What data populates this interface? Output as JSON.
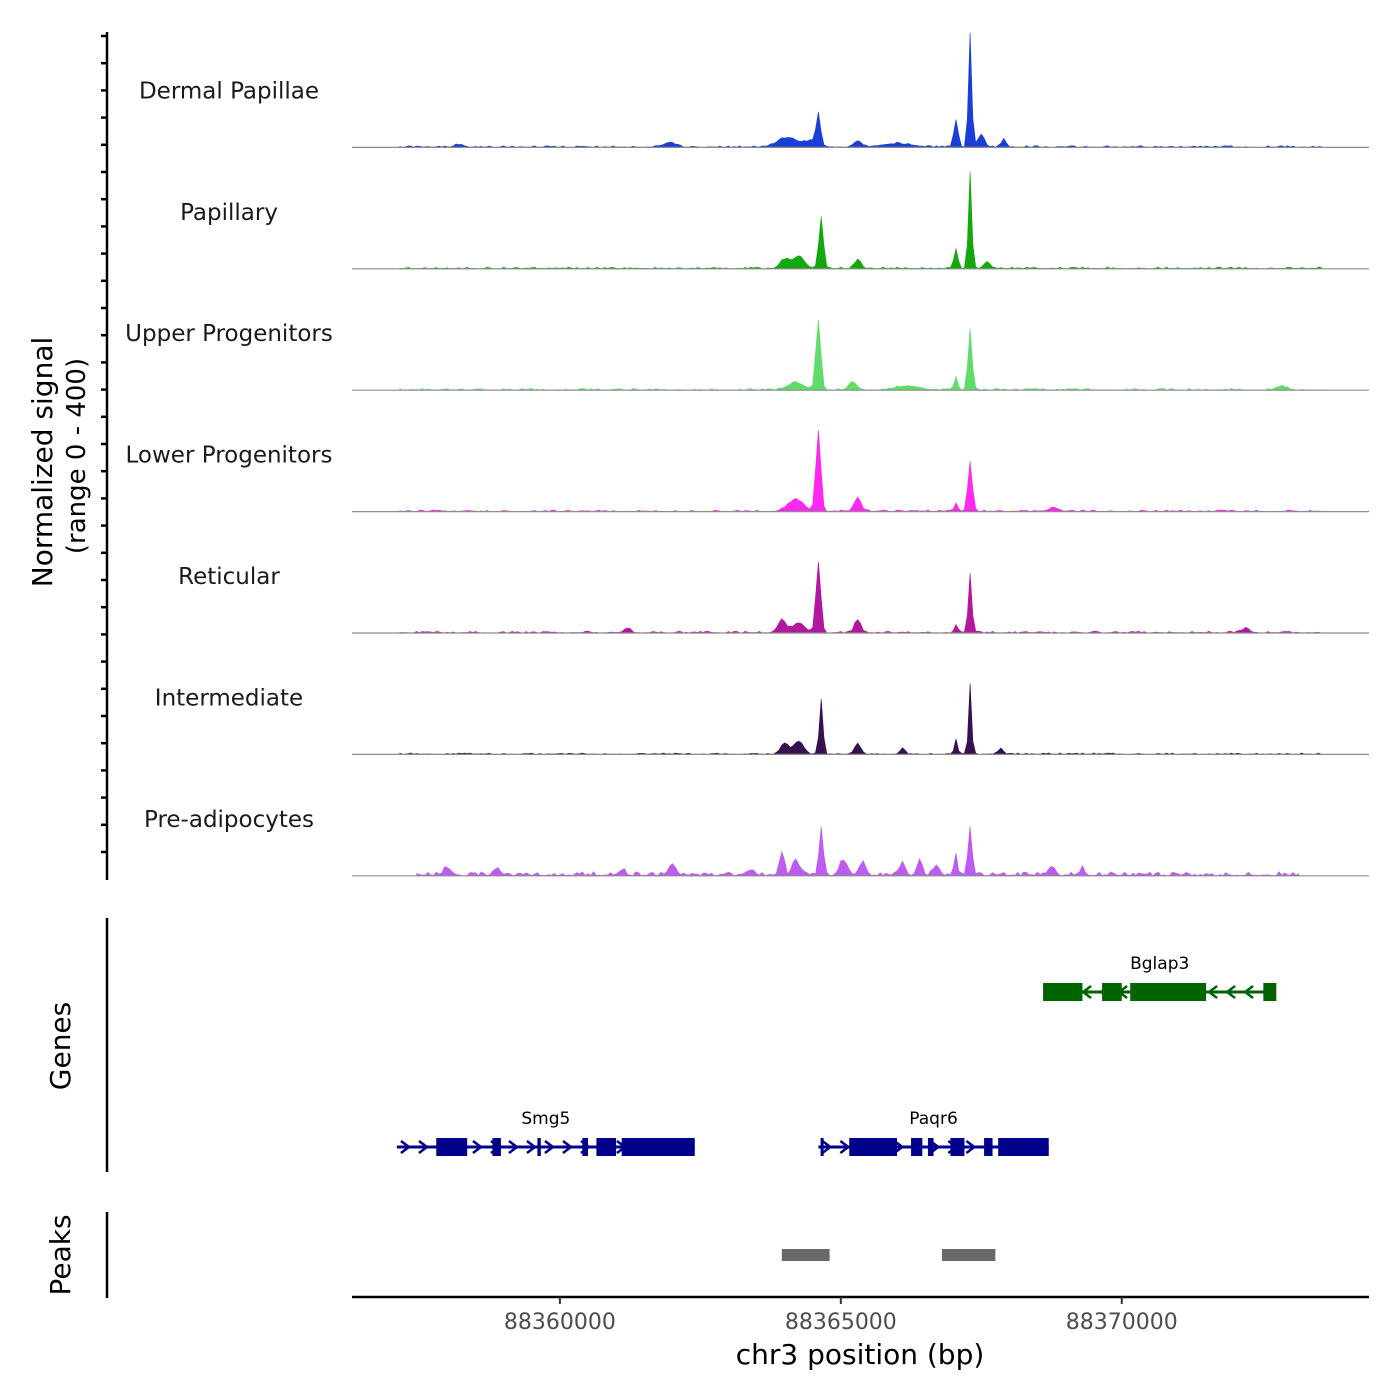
{
  "chart_data": {
    "type": "area",
    "title": "",
    "chromosome": "chr3",
    "xlabel": "chr3 position (bp)",
    "ylabel": "Normalized signal",
    "ylabel_range": "(range 0 - 400)",
    "xlim": [
      88356300,
      88374400
    ],
    "ylim": [
      0,
      400
    ],
    "x_ticks": [
      88360000,
      88365000,
      88370000
    ],
    "x_tick_labels": [
      "88360000",
      "88365000",
      "88370000"
    ],
    "tracks": [
      {
        "name": "Dermal Papillae",
        "color": "#1a3fd6",
        "noise": 6,
        "span": [
          88357150,
          88373550
        ],
        "peaks": [
          {
            "pos": 88364050,
            "height": 32,
            "width": 260
          },
          {
            "pos": 88364500,
            "height": 22,
            "width": 180
          },
          {
            "pos": 88364600,
            "height": 105,
            "width": 50
          },
          {
            "pos": 88365300,
            "height": 22,
            "width": 90
          },
          {
            "pos": 88366000,
            "height": 12,
            "width": 400
          },
          {
            "pos": 88367050,
            "height": 95,
            "width": 55
          },
          {
            "pos": 88367300,
            "height": 395,
            "width": 42
          },
          {
            "pos": 88367500,
            "height": 45,
            "width": 80
          },
          {
            "pos": 88367900,
            "height": 28,
            "width": 60
          },
          {
            "pos": 88361950,
            "height": 16,
            "width": 150
          },
          {
            "pos": 88358200,
            "height": 8,
            "width": 120
          }
        ]
      },
      {
        "name": "Papillary",
        "color": "#14a80e",
        "noise": 6,
        "span": [
          88357150,
          88373550
        ],
        "peaks": [
          {
            "pos": 88364250,
            "height": 40,
            "width": 150
          },
          {
            "pos": 88364000,
            "height": 30,
            "width": 120
          },
          {
            "pos": 88364650,
            "height": 180,
            "width": 55
          },
          {
            "pos": 88365300,
            "height": 30,
            "width": 80
          },
          {
            "pos": 88367050,
            "height": 70,
            "width": 50
          },
          {
            "pos": 88367300,
            "height": 335,
            "width": 42
          },
          {
            "pos": 88367600,
            "height": 25,
            "width": 70
          }
        ]
      },
      {
        "name": "Upper Progenitors",
        "color": "#5fdc6c",
        "noise": 6,
        "span": [
          88357150,
          88373550
        ],
        "peaks": [
          {
            "pos": 88364200,
            "height": 25,
            "width": 200
          },
          {
            "pos": 88364600,
            "height": 240,
            "width": 60
          },
          {
            "pos": 88365200,
            "height": 28,
            "width": 90
          },
          {
            "pos": 88366200,
            "height": 14,
            "width": 300
          },
          {
            "pos": 88367050,
            "height": 45,
            "width": 45
          },
          {
            "pos": 88367300,
            "height": 210,
            "width": 50
          },
          {
            "pos": 88372850,
            "height": 12,
            "width": 120
          }
        ]
      },
      {
        "name": "Lower Progenitors",
        "color": "#ff28ee",
        "noise": 6,
        "span": [
          88357150,
          88373550
        ],
        "peaks": [
          {
            "pos": 88364200,
            "height": 40,
            "width": 200
          },
          {
            "pos": 88364600,
            "height": 280,
            "width": 60
          },
          {
            "pos": 88365300,
            "height": 50,
            "width": 80
          },
          {
            "pos": 88367050,
            "height": 28,
            "width": 45
          },
          {
            "pos": 88367300,
            "height": 170,
            "width": 55
          },
          {
            "pos": 88368800,
            "height": 12,
            "width": 120
          }
        ]
      },
      {
        "name": "Reticular",
        "color": "#b3169f",
        "noise": 6,
        "span": [
          88357150,
          88373550
        ],
        "peaks": [
          {
            "pos": 88363950,
            "height": 45,
            "width": 100
          },
          {
            "pos": 88364250,
            "height": 35,
            "width": 150
          },
          {
            "pos": 88364600,
            "height": 240,
            "width": 60
          },
          {
            "pos": 88365300,
            "height": 45,
            "width": 80
          },
          {
            "pos": 88367050,
            "height": 28,
            "width": 45
          },
          {
            "pos": 88367300,
            "height": 205,
            "width": 45
          },
          {
            "pos": 88361200,
            "height": 16,
            "width": 80
          },
          {
            "pos": 88372200,
            "height": 14,
            "width": 100
          }
        ]
      },
      {
        "name": "Intermediate",
        "color": "#37114f",
        "noise": 5,
        "span": [
          88357150,
          88373550
        ],
        "peaks": [
          {
            "pos": 88364000,
            "height": 38,
            "width": 100
          },
          {
            "pos": 88364250,
            "height": 45,
            "width": 120
          },
          {
            "pos": 88364650,
            "height": 190,
            "width": 45
          },
          {
            "pos": 88365300,
            "height": 35,
            "width": 80
          },
          {
            "pos": 88366100,
            "height": 22,
            "width": 60
          },
          {
            "pos": 88367050,
            "height": 50,
            "width": 40
          },
          {
            "pos": 88367300,
            "height": 240,
            "width": 38
          },
          {
            "pos": 88367850,
            "height": 20,
            "width": 60
          }
        ]
      },
      {
        "name": "Pre-adipocytes",
        "color": "#bc5cf0",
        "noise": 14,
        "span": [
          88357450,
          88373150
        ],
        "peaks": [
          {
            "pos": 88358000,
            "height": 25,
            "width": 100
          },
          {
            "pos": 88358900,
            "height": 25,
            "width": 60
          },
          {
            "pos": 88361100,
            "height": 20,
            "width": 80
          },
          {
            "pos": 88362000,
            "height": 35,
            "width": 100
          },
          {
            "pos": 88363400,
            "height": 20,
            "width": 100
          },
          {
            "pos": 88363950,
            "height": 80,
            "width": 60
          },
          {
            "pos": 88364200,
            "height": 55,
            "width": 80
          },
          {
            "pos": 88364650,
            "height": 170,
            "width": 50
          },
          {
            "pos": 88365050,
            "height": 50,
            "width": 100
          },
          {
            "pos": 88365400,
            "height": 40,
            "width": 80
          },
          {
            "pos": 88366100,
            "height": 50,
            "width": 60
          },
          {
            "pos": 88366400,
            "height": 55,
            "width": 60
          },
          {
            "pos": 88366700,
            "height": 35,
            "width": 80
          },
          {
            "pos": 88367050,
            "height": 75,
            "width": 40
          },
          {
            "pos": 88367300,
            "height": 160,
            "width": 50
          },
          {
            "pos": 88368750,
            "height": 30,
            "width": 80
          },
          {
            "pos": 88369300,
            "height": 22,
            "width": 60
          }
        ]
      }
    ],
    "genes_label": "Genes",
    "genes": [
      {
        "name": "Bglap3",
        "strand": "-",
        "color": "#006400",
        "row": 0,
        "start": 88368600,
        "end": 88372750,
        "exons": [
          [
            88368600,
            88369300
          ],
          [
            88369650,
            88370000
          ],
          [
            88370150,
            88371500
          ],
          [
            88372520,
            88372750
          ]
        ]
      },
      {
        "name": "Smg5",
        "strand": "+",
        "color": "#00008b",
        "row": 1,
        "start": 88357100,
        "end": 88362400,
        "exons": [
          [
            88357800,
            88358350
          ],
          [
            88358800,
            88358950
          ],
          [
            88359600,
            88359660
          ],
          [
            88360400,
            88360500
          ],
          [
            88360650,
            88361000
          ],
          [
            88361100,
            88362400
          ]
        ]
      },
      {
        "name": "Paqr6",
        "strand": "+",
        "color": "#00008b",
        "row": 1,
        "start": 88364600,
        "end": 88368700,
        "exons": [
          [
            88364640,
            88364680
          ],
          [
            88365150,
            88366000
          ],
          [
            88366250,
            88366450
          ],
          [
            88366550,
            88366650
          ],
          [
            88366950,
            88367200
          ],
          [
            88367550,
            88367700
          ],
          [
            88367800,
            88368700
          ]
        ]
      }
    ],
    "peaks_label": "Peaks",
    "peak_regions": [
      [
        88363950,
        88364800
      ],
      [
        88366800,
        88367750
      ]
    ],
    "peak_color": "#696969"
  }
}
